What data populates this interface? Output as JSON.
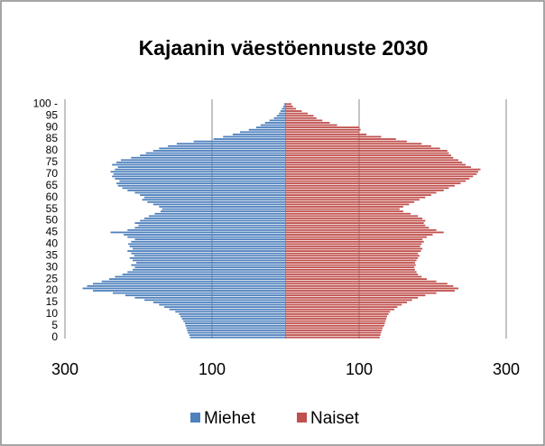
{
  "chart_data": {
    "type": "pyramid",
    "title": "Kajaanin väestöennuste 2030",
    "categories": [
      "0",
      null,
      null,
      null,
      null,
      "5",
      null,
      null,
      null,
      null,
      "10",
      null,
      null,
      null,
      null,
      "15",
      null,
      null,
      null,
      null,
      "20",
      null,
      null,
      null,
      null,
      "25",
      null,
      null,
      null,
      null,
      "30",
      null,
      null,
      null,
      null,
      "35",
      null,
      null,
      null,
      null,
      "40",
      null,
      null,
      null,
      null,
      "45",
      null,
      null,
      null,
      null,
      "50",
      null,
      null,
      null,
      null,
      "55",
      null,
      null,
      null,
      null,
      "60",
      null,
      null,
      null,
      null,
      "65",
      null,
      null,
      null,
      null,
      "70",
      null,
      null,
      null,
      null,
      "75",
      null,
      null,
      null,
      null,
      "80",
      null,
      null,
      null,
      null,
      "85",
      null,
      null,
      null,
      null,
      "90",
      null,
      null,
      null,
      null,
      "95",
      null,
      null,
      null,
      null,
      "100 -"
    ],
    "series": [
      {
        "name": "Miehet",
        "color": "#4f81bd",
        "values": [
          -130,
          -131,
          -133,
          -134,
          -135,
          -136,
          -137,
          -139,
          -141,
          -143,
          -145,
          -150,
          -158,
          -165,
          -172,
          -180,
          -192,
          -205,
          -218,
          -235,
          -262,
          -276,
          -270,
          -262,
          -250,
          -240,
          -232,
          -222,
          -215,
          -208,
          -205,
          -210,
          -203,
          -208,
          -212,
          -206,
          -210,
          -215,
          -208,
          -212,
          -214,
          -210,
          -205,
          -215,
          -220,
          -238,
          -215,
          -205,
          -200,
          -205,
          -198,
          -192,
          -186,
          -178,
          -170,
          -168,
          -172,
          -180,
          -188,
          -195,
          -192,
          -198,
          -205,
          -215,
          -222,
          -228,
          -230,
          -226,
          -232,
          -236,
          -234,
          -238,
          -232,
          -228,
          -236,
          -230,
          -224,
          -210,
          -198,
          -190,
          -180,
          -172,
          -160,
          -148,
          -125,
          -98,
          -85,
          -72,
          -62,
          -50,
          -40,
          -34,
          -28,
          -22,
          -16,
          -12,
          -9,
          -7,
          -5,
          -3,
          -2
        ]
      },
      {
        "name": "Naiset",
        "color": "#c0504d",
        "values": [
          128,
          129,
          130,
          131,
          132,
          134,
          135,
          136,
          137,
          138,
          140,
          142,
          148,
          152,
          158,
          165,
          172,
          180,
          190,
          205,
          230,
          235,
          228,
          220,
          205,
          192,
          185,
          180,
          178,
          176,
          175,
          177,
          176,
          178,
          180,
          182,
          180,
          184,
          186,
          183,
          185,
          188,
          186,
          192,
          200,
          215,
          205,
          195,
          190,
          188,
          190,
          186,
          180,
          170,
          160,
          155,
          160,
          168,
          175,
          182,
          190,
          198,
          205,
          215,
          222,
          230,
          238,
          245,
          250,
          255,
          260,
          262,
          265,
          252,
          245,
          240,
          235,
          228,
          225,
          222,
          220,
          210,
          198,
          185,
          165,
          150,
          130,
          110,
          100,
          102,
          100,
          70,
          60,
          50,
          42,
          38,
          30,
          22,
          14,
          10,
          8
        ]
      }
    ],
    "xlim": [
      -300,
      300
    ],
    "xticks": [
      {
        "value": -300,
        "label": "300"
      },
      {
        "value": -100,
        "label": "100"
      },
      {
        "value": 100,
        "label": "100"
      },
      {
        "value": 300,
        "label": "300"
      }
    ],
    "grid": true,
    "legend": "bottom"
  }
}
